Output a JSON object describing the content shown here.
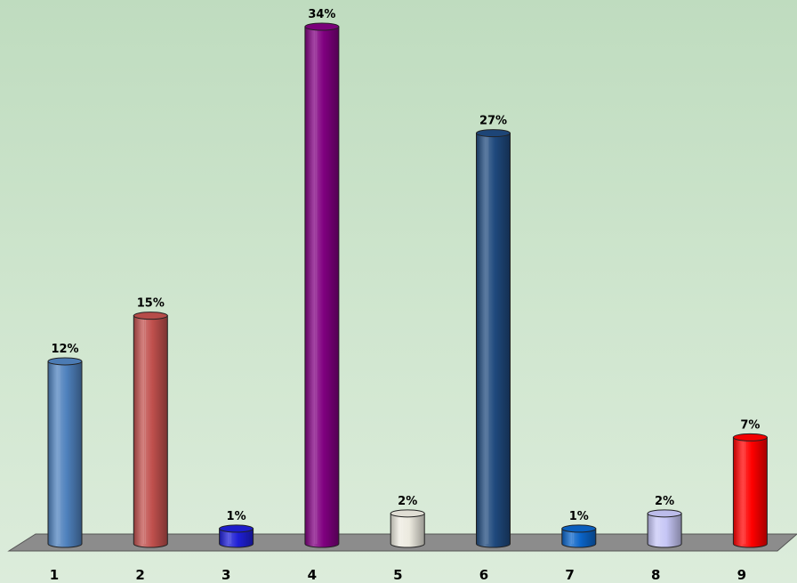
{
  "chart_data": {
    "type": "bar",
    "style": "3d-cylinder",
    "categories": [
      "1",
      "2",
      "3",
      "4",
      "5",
      "6",
      "7",
      "8",
      "9"
    ],
    "values": [
      12,
      15,
      1,
      34,
      2,
      27,
      1,
      2,
      7
    ],
    "data_labels": [
      "12%",
      "15%",
      "1%",
      "34%",
      "2%",
      "27%",
      "1%",
      "2%",
      "7%"
    ],
    "colors": [
      "#4f81bd",
      "#c0504d",
      "#1f1fd6",
      "#800080",
      "#eceadf",
      "#1f497d",
      "#0b64c8",
      "#c6c6f6",
      "#ff0000"
    ],
    "floor_color": "#8c8c8c",
    "background_colors": [
      "#bfdcbf",
      "#dcecdb"
    ],
    "title": "",
    "xlabel": "",
    "ylabel": "",
    "ylim": [
      0,
      34
    ],
    "grid": false,
    "legend": "none"
  }
}
